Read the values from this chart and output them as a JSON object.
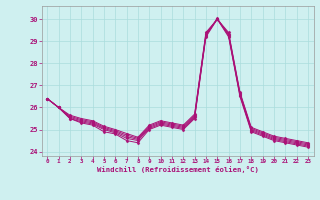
{
  "xlabel": "Windchill (Refroidissement éolien,°C)",
  "bg_color": "#cff0f0",
  "grid_color": "#aadddd",
  "line_color": "#aa1177",
  "xlim": [
    -0.5,
    23.5
  ],
  "ylim": [
    23.8,
    30.6
  ],
  "yticks": [
    24,
    25,
    26,
    27,
    28,
    29,
    30
  ],
  "xticks": [
    0,
    1,
    2,
    3,
    4,
    5,
    6,
    7,
    8,
    9,
    10,
    11,
    12,
    13,
    14,
    15,
    16,
    17,
    18,
    19,
    20,
    21,
    22,
    23
  ],
  "hours": [
    0,
    1,
    2,
    3,
    4,
    5,
    6,
    7,
    8,
    9,
    10,
    11,
    12,
    13,
    14,
    15,
    16,
    17,
    18,
    19,
    20,
    21,
    22,
    23
  ],
  "line1": [
    26.4,
    26.0,
    25.5,
    25.3,
    25.2,
    24.9,
    24.8,
    24.5,
    24.4,
    25.0,
    25.2,
    25.1,
    25.0,
    25.5,
    29.2,
    30.0,
    29.2,
    26.5,
    24.9,
    24.7,
    24.5,
    24.4,
    24.3,
    24.2
  ],
  "line2": [
    26.4,
    26.0,
    25.5,
    25.35,
    25.25,
    25.0,
    24.85,
    24.6,
    24.5,
    25.05,
    25.25,
    25.15,
    25.05,
    25.55,
    29.25,
    30.05,
    29.25,
    26.55,
    24.95,
    24.75,
    24.55,
    24.45,
    24.35,
    24.25
  ],
  "line3": [
    26.4,
    26.0,
    25.55,
    25.4,
    25.3,
    25.05,
    24.9,
    24.68,
    24.55,
    25.1,
    25.3,
    25.2,
    25.1,
    25.6,
    29.3,
    30.0,
    29.3,
    26.6,
    25.0,
    24.8,
    24.6,
    24.5,
    24.4,
    24.3
  ],
  "line4": [
    26.4,
    26.0,
    25.6,
    25.45,
    25.35,
    25.1,
    24.95,
    24.75,
    24.6,
    25.15,
    25.35,
    25.25,
    25.15,
    25.65,
    29.35,
    30.0,
    29.35,
    26.65,
    25.05,
    24.85,
    24.65,
    24.55,
    24.45,
    24.35
  ],
  "line5": [
    26.4,
    26.0,
    25.65,
    25.5,
    25.4,
    25.15,
    25.0,
    24.82,
    24.65,
    25.2,
    25.4,
    25.3,
    25.2,
    25.7,
    29.4,
    30.0,
    29.4,
    26.7,
    25.1,
    24.9,
    24.7,
    24.6,
    24.5,
    24.4
  ]
}
